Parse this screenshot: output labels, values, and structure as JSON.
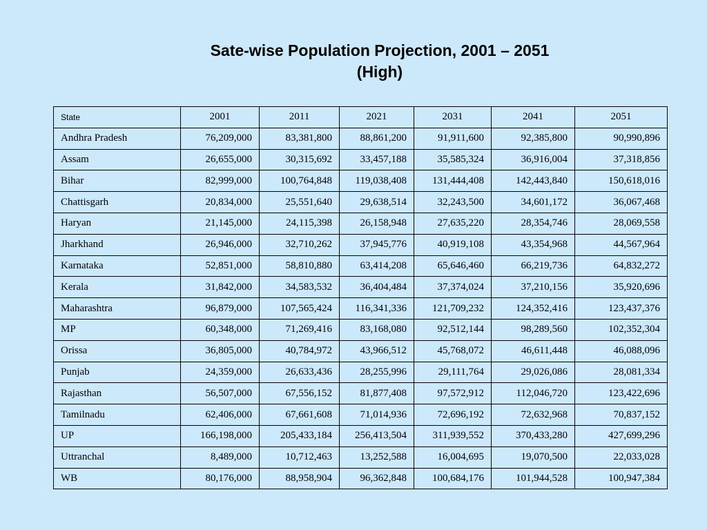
{
  "title": {
    "line1": "Sate-wise Population Projection, 2001 – 2051",
    "line2": "(High)"
  },
  "table": {
    "headers": [
      "State",
      "2001",
      "2011",
      "2021",
      "2031",
      "2041",
      "2051"
    ],
    "rows": [
      [
        "Andhra Pradesh",
        "76,209,000",
        "83,381,800",
        "88,861,200",
        "91,911,600",
        "92,385,800",
        "90,990,896"
      ],
      [
        "Assam",
        "26,655,000",
        "30,315,692",
        "33,457,188",
        "35,585,324",
        "36,916,004",
        "37,318,856"
      ],
      [
        "Bihar",
        "82,999,000",
        "100,764,848",
        "119,038,408",
        "131,444,408",
        "142,443,840",
        "150,618,016"
      ],
      [
        "Chattisgarh",
        "20,834,000",
        "25,551,640",
        "29,638,514",
        "32,243,500",
        "34,601,172",
        "36,067,468"
      ],
      [
        "Haryan",
        "21,145,000",
        "24,115,398",
        "26,158,948",
        "27,635,220",
        "28,354,746",
        "28,069,558"
      ],
      [
        "Jharkhand",
        "26,946,000",
        "32,710,262",
        "37,945,776",
        "40,919,108",
        "43,354,968",
        "44,567,964"
      ],
      [
        "Karnataka",
        "52,851,000",
        "58,810,880",
        "63,414,208",
        "65,646,460",
        "66,219,736",
        "64,832,272"
      ],
      [
        "Kerala",
        "31,842,000",
        "34,583,532",
        "36,404,484",
        "37,374,024",
        "37,210,156",
        "35,920,696"
      ],
      [
        "Maharashtra",
        "96,879,000",
        "107,565,424",
        "116,341,336",
        "121,709,232",
        "124,352,416",
        "123,437,376"
      ],
      [
        "MP",
        "60,348,000",
        "71,269,416",
        "83,168,080",
        "92,512,144",
        "98,289,560",
        "102,352,304"
      ],
      [
        "Orissa",
        "36,805,000",
        "40,784,972",
        "43,966,512",
        "45,768,072",
        "46,611,448",
        "46,088,096"
      ],
      [
        "Punjab",
        "24,359,000",
        "26,633,436",
        "28,255,996",
        "29,111,764",
        "29,026,086",
        "28,081,334"
      ],
      [
        "Rajasthan",
        "56,507,000",
        "67,556,152",
        "81,877,408",
        "97,572,912",
        "112,046,720",
        "123,422,696"
      ],
      [
        "Tamilnadu",
        "62,406,000",
        "67,661,608",
        "71,014,936",
        "72,696,192",
        "72,632,968",
        "70,837,152"
      ],
      [
        "UP",
        "166,198,000",
        "205,433,184",
        "256,413,504",
        "311,939,552",
        "370,433,280",
        "427,699,296"
      ],
      [
        "Uttranchal",
        "8,489,000",
        "10,712,463",
        "13,252,588",
        "16,004,695",
        "19,070,500",
        "22,033,028"
      ],
      [
        "WB",
        "80,176,000",
        "88,958,904",
        "96,362,848",
        "100,684,176",
        "101,944,528",
        "100,947,384"
      ]
    ]
  }
}
